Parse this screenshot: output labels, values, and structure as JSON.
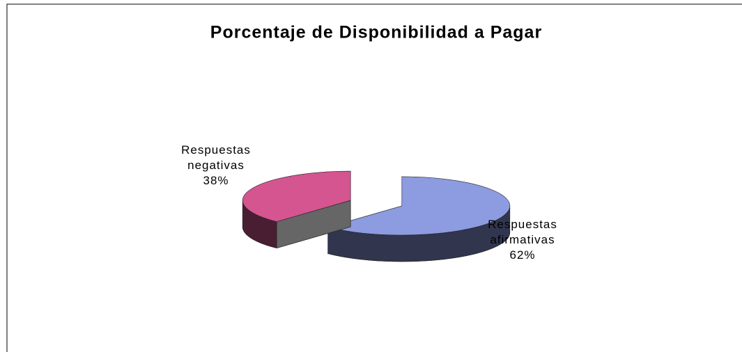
{
  "chart_data": {
    "type": "pie",
    "title": "Porcentaje de Disponibilidad a Pagar",
    "categories": [
      "Respuestas afirmativas",
      "Respuestas negativas"
    ],
    "values": [
      62,
      38
    ],
    "value_labels": [
      "62%",
      "38%"
    ],
    "colors": [
      "#8d9be0",
      "#d4558f"
    ]
  }
}
